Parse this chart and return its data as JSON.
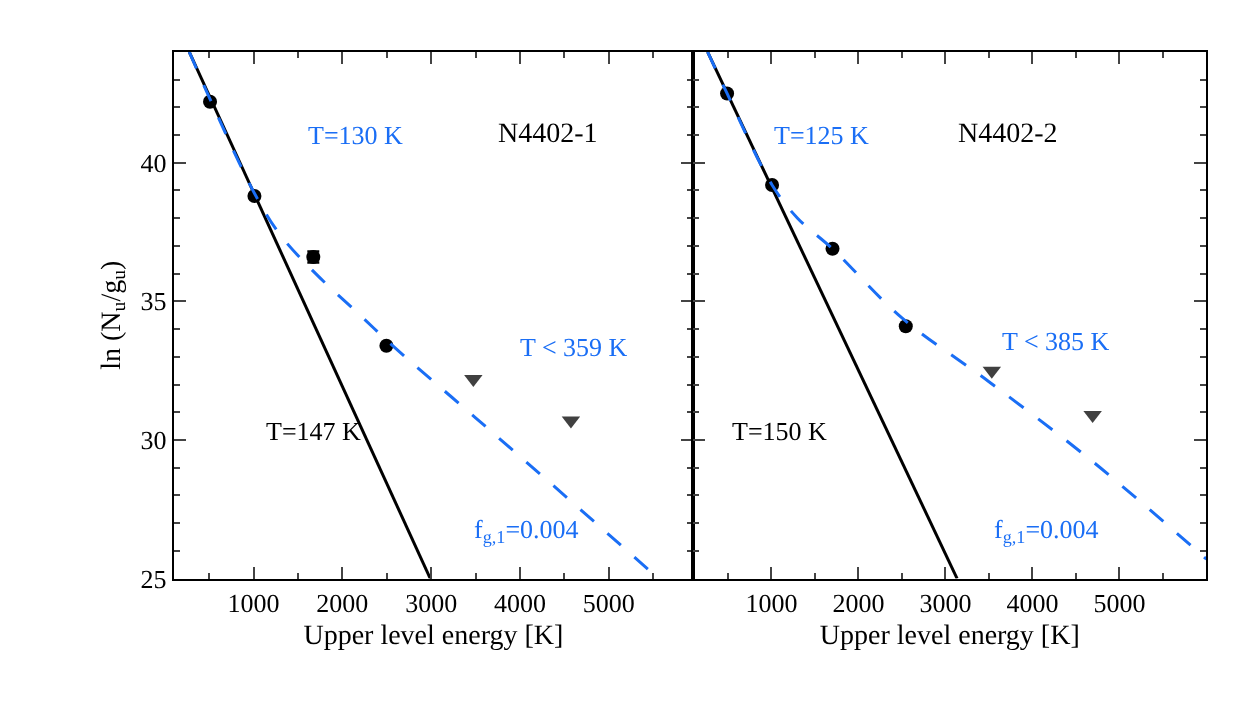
{
  "chart_data": [
    {
      "type": "scatter",
      "title": "N4402-1",
      "xlabel": "Upper level energy [K]",
      "ylabel": "ln (N$_{u}$/g$_{u}$)",
      "xlim": [
        100,
        5950
      ],
      "ylim": [
        25,
        44
      ],
      "xticks": [
        1000,
        2000,
        3000,
        4000,
        5000
      ],
      "yticks": [
        25,
        30,
        35,
        40
      ],
      "series": [
        {
          "marker": "circle",
          "color": "#000000",
          "x": [
            510,
            1010,
            1673,
            2496
          ],
          "values": [
            42.2,
            38.8,
            36.6,
            33.4
          ],
          "errors": [
            null,
            null,
            0.2,
            null
          ]
        },
        {
          "type": "line",
          "line_style": "solid",
          "marker": "none",
          "color": "#000000",
          "x": [
            276,
            2990
          ],
          "values": [
            44,
            25
          ]
        },
        {
          "type": "line",
          "line_style": "dashed",
          "marker": "none",
          "color": "#1a6ef5",
          "x": [
            276,
            510,
            1010,
            1300,
            1700,
            2200,
            2600,
            3500,
            4500,
            5560
          ],
          "values": [
            44,
            42.3,
            38.9,
            37.4,
            36.0,
            34.5,
            33.3,
            30.8,
            28.0,
            25
          ]
        },
        {
          "marker": "triangle",
          "color": "#404040",
          "x": [
            3475,
            4574
          ],
          "values": [
            32.2,
            30.7
          ]
        }
      ],
      "annotations": [
        "T=130 K",
        "T < 359 K",
        "T=147 K",
        "f$_{g,1}$=0.004"
      ]
    },
    {
      "type": "scatter",
      "title": "N4402-2",
      "xlabel": "Upper level energy [K]",
      "xlim": [
        100,
        6000
      ],
      "ylim": [
        25,
        44
      ],
      "xticks": [
        1000,
        2000,
        3000,
        4000,
        5000
      ],
      "yticks": [
        25,
        30,
        35,
        40
      ],
      "tick_labels": "x",
      "series": [
        {
          "marker": "circle",
          "color": "#000000",
          "x": [
            490,
            1007,
            1702,
            2544
          ],
          "values": [
            42.5,
            39.2,
            36.9,
            34.1
          ]
        },
        {
          "type": "line",
          "line_style": "solid",
          "marker": "none",
          "color": "#000000",
          "x": [
            266,
            3134
          ],
          "values": [
            44,
            25
          ]
        },
        {
          "type": "line",
          "line_style": "dashed",
          "marker": "none",
          "color": "#1a6ef5",
          "x": [
            266,
            490,
            1007,
            1300,
            1700,
            2500,
            3500,
            4700,
            6000
          ],
          "values": [
            44,
            42.5,
            39.2,
            38.0,
            36.9,
            34.4,
            32.1,
            29.2,
            25.7
          ]
        },
        {
          "marker": "triangle",
          "color": "#404040",
          "x": [
            3533,
            4692
          ],
          "values": [
            32.5,
            30.9
          ]
        }
      ],
      "annotations": [
        "T=125 K",
        "T < 385 K",
        "T=150 K",
        "f$_{g,1}$=0.004"
      ]
    }
  ]
}
